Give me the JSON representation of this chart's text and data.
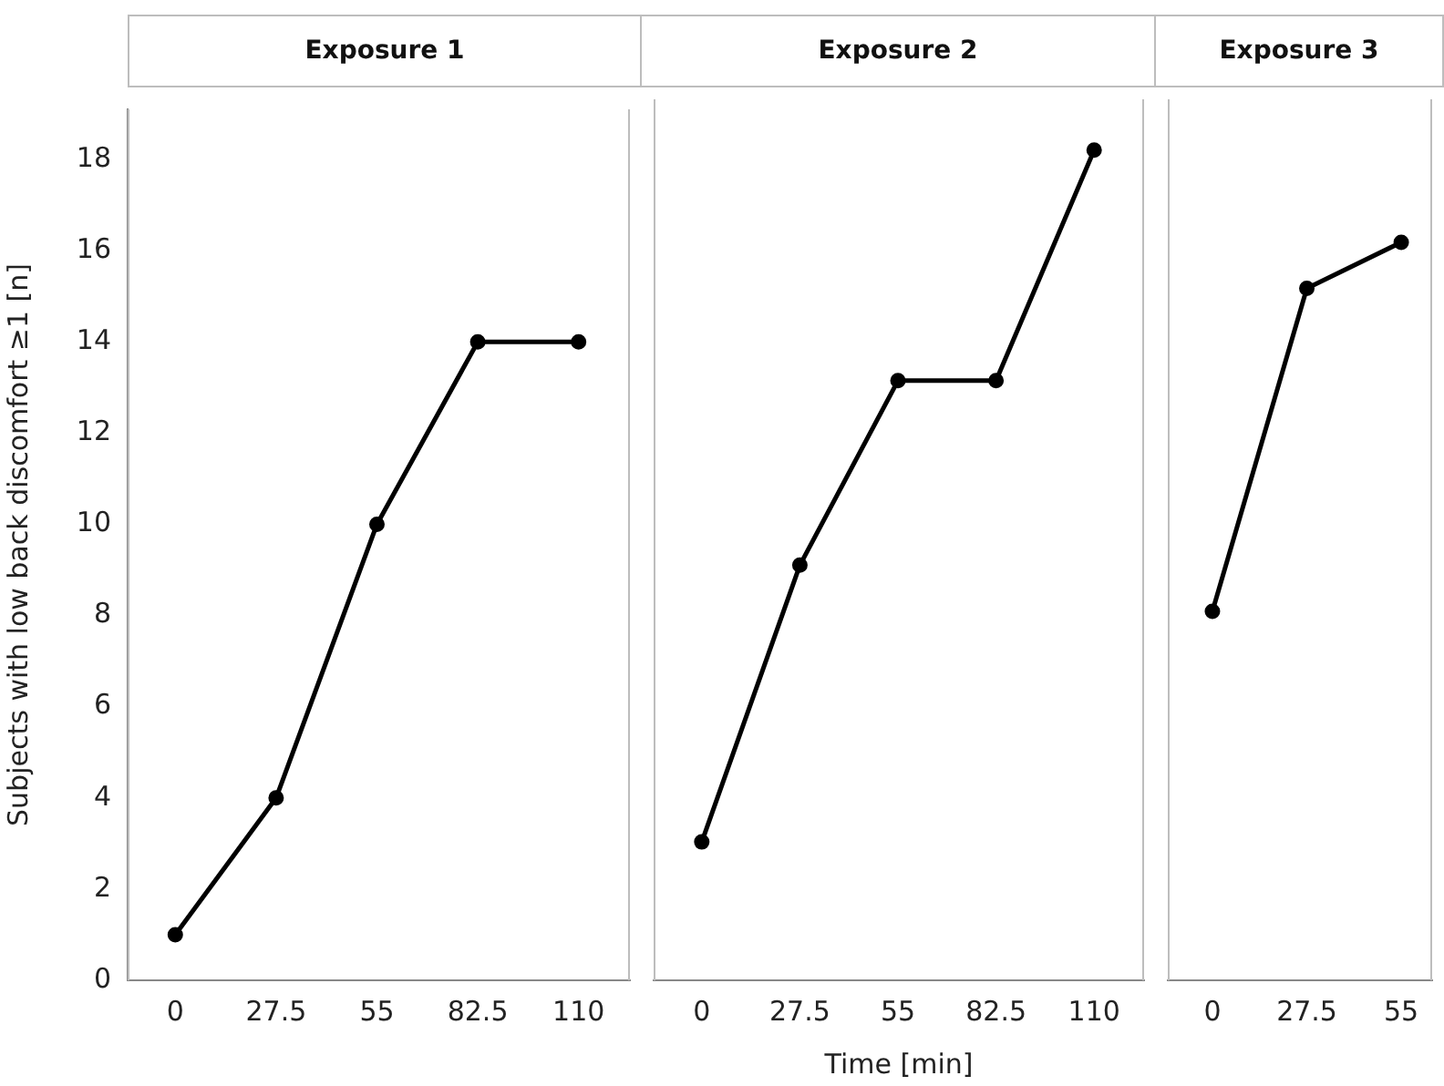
{
  "chart_data": [
    {
      "type": "line",
      "title": "Exposure 1",
      "ylabel": "Subjects with low back discomfort ≥1 [n]",
      "x": [
        0,
        27.5,
        55,
        82.5,
        110
      ],
      "values": [
        1,
        4,
        10,
        14,
        14
      ],
      "color": "#000000",
      "marker": "circle",
      "line_style": "solid",
      "xlim": [
        -13,
        124
      ],
      "xticks": [
        0,
        27.5,
        55,
        82.5,
        110
      ],
      "ylim": [
        0,
        19.1
      ],
      "yticks": [
        0,
        2,
        4,
        6,
        8,
        10,
        12,
        14,
        16,
        18
      ]
    },
    {
      "type": "line",
      "title": "Exposure 2",
      "xlabel": "Time [min]",
      "x": [
        0,
        27.5,
        55,
        82.5,
        110
      ],
      "values": [
        3,
        9,
        13,
        13,
        18
      ],
      "color": "#000000",
      "marker": "circle",
      "line_style": "solid",
      "xlim": [
        -13.5,
        124
      ],
      "xticks": [
        0,
        27.5,
        55,
        82.5,
        110
      ],
      "ylim": [
        0,
        19.1
      ],
      "yticks": [
        0,
        2,
        4,
        6,
        8,
        10,
        12,
        14,
        16,
        18
      ],
      "tick_labels": "x"
    },
    {
      "type": "line",
      "title": "Exposure 3",
      "x": [
        0,
        27.5,
        55
      ],
      "values": [
        8,
        15,
        16
      ],
      "color": "#000000",
      "marker": "circle",
      "line_style": "solid",
      "xlim": [
        -13,
        64
      ],
      "xticks": [
        0,
        27.5,
        55
      ],
      "ylim": [
        0,
        19.1
      ],
      "yticks": [
        0,
        2,
        4,
        6,
        8,
        10,
        12,
        14,
        16,
        18
      ],
      "tick_labels": "x"
    }
  ]
}
